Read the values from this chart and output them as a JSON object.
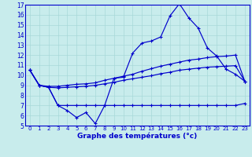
{
  "xlabel": "Graphe des températures (°c)",
  "bg_color": "#c8ecec",
  "line_color": "#0000cc",
  "grid_color": "#a8d8d8",
  "hours": [
    0,
    1,
    2,
    3,
    4,
    5,
    6,
    7,
    8,
    9,
    10,
    11,
    12,
    13,
    14,
    15,
    16,
    17,
    18,
    19,
    20,
    21,
    22,
    23
  ],
  "line_top": [
    10.5,
    9.0,
    8.8,
    7.0,
    6.5,
    5.8,
    6.3,
    5.2,
    7.0,
    9.7,
    9.8,
    12.2,
    13.2,
    13.4,
    13.8,
    15.9,
    17.1,
    15.7,
    14.7,
    12.7,
    11.9,
    10.6,
    10.1,
    9.4
  ],
  "line_upper_mid": [
    10.5,
    9.0,
    8.9,
    8.9,
    9.0,
    9.1,
    9.15,
    9.25,
    9.5,
    9.7,
    9.9,
    10.1,
    10.4,
    10.65,
    10.9,
    11.1,
    11.3,
    11.5,
    11.6,
    11.75,
    11.85,
    11.9,
    12.0,
    9.4
  ],
  "line_lower_mid": [
    10.5,
    9.0,
    8.8,
    8.75,
    8.8,
    8.85,
    8.9,
    9.0,
    9.15,
    9.3,
    9.5,
    9.65,
    9.8,
    9.95,
    10.15,
    10.3,
    10.5,
    10.6,
    10.7,
    10.8,
    10.85,
    10.9,
    10.95,
    9.4
  ],
  "line_flat": [
    10.5,
    9.0,
    8.8,
    7.0,
    7.0,
    7.0,
    7.0,
    7.0,
    7.0,
    7.0,
    7.0,
    7.0,
    7.0,
    7.0,
    7.0,
    7.0,
    7.0,
    7.0,
    7.0,
    7.0,
    7.0,
    7.0,
    7.0,
    7.2
  ],
  "ylim": [
    5,
    17
  ],
  "yticks": [
    5,
    6,
    7,
    8,
    9,
    10,
    11,
    12,
    13,
    14,
    15,
    16,
    17
  ],
  "figw": 3.2,
  "figh": 2.0,
  "dpi": 100
}
